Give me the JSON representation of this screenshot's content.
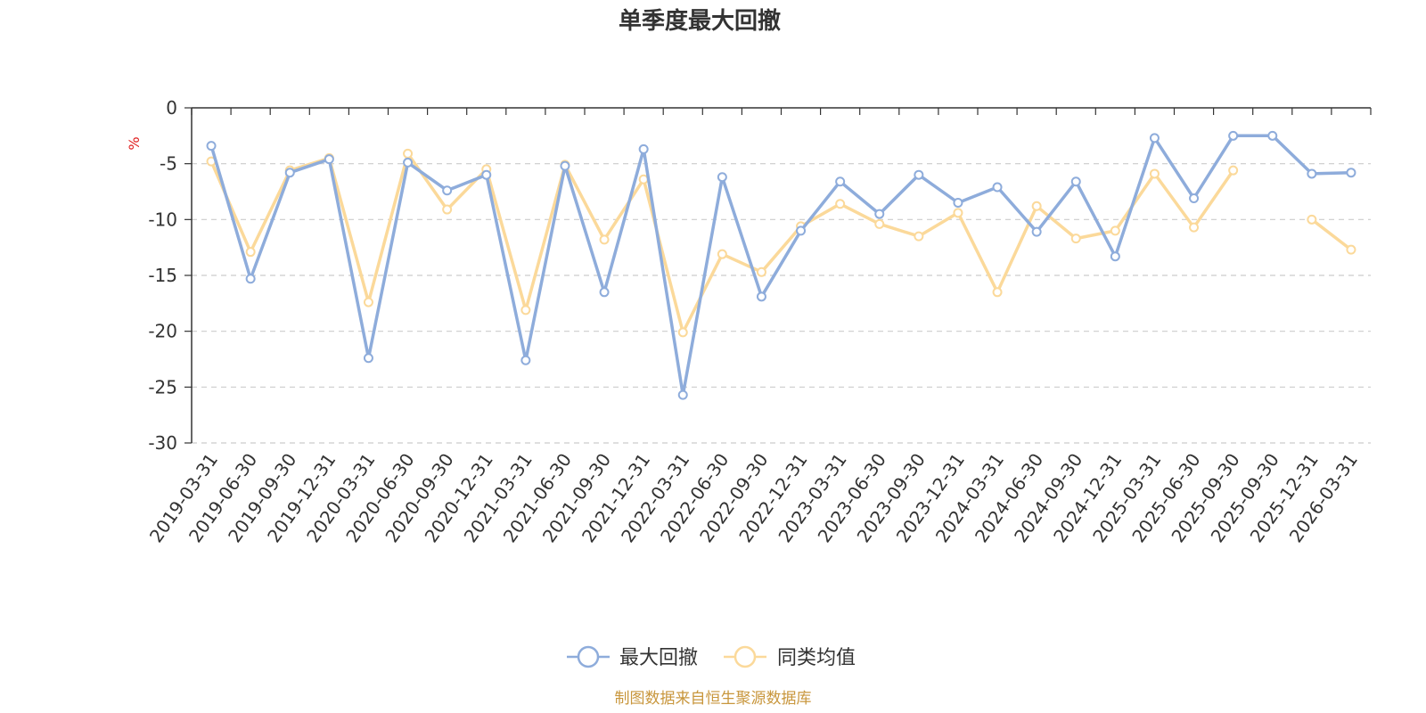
{
  "chart_data": {
    "type": "line",
    "title": "单季度最大回撤",
    "ylabel": "%",
    "ylim": [
      -30,
      0
    ],
    "yticks": [
      0,
      -5,
      -10,
      -15,
      -20,
      -25,
      -30
    ],
    "grid": true,
    "legend_position": "bottom-center",
    "categories": [
      "2019-03-31",
      "2019-06-30",
      "2019-09-30",
      "2019-12-31",
      "2020-03-31",
      "2020-06-30",
      "2020-09-30",
      "2020-12-31",
      "2021-03-31",
      "2021-06-30",
      "2021-09-30",
      "2021-12-31",
      "2022-03-31",
      "2022-06-30",
      "2022-09-30",
      "2022-12-31",
      "2023-03-31",
      "2023-06-30",
      "2023-09-30",
      "2023-12-31",
      "2024-03-31",
      "2024-06-30",
      "2024-09-30",
      "2024-12-31",
      "2025-03-31",
      "2025-06-30",
      "2025-09-30",
      "2025-09-30",
      "2025-12-31",
      "2026-03-31"
    ],
    "series": [
      {
        "name": "最大回撤",
        "color": "#8eacdb",
        "values": [
          -3.4,
          -15.3,
          -5.8,
          -4.6,
          -22.4,
          -4.9,
          -7.4,
          -6.0,
          -22.6,
          -5.2,
          -16.5,
          -3.7,
          -25.7,
          -6.2,
          -16.9,
          -11.0,
          -6.6,
          -9.5,
          -6.0,
          -8.5,
          -7.1,
          -11.1,
          -6.6,
          -13.3,
          -2.7,
          -8.1,
          -2.5,
          -2.5,
          -5.9,
          -5.8
        ]
      },
      {
        "name": "同类均值",
        "color": "#fbd99a",
        "values": [
          -4.8,
          -12.9,
          -5.6,
          -4.5,
          -17.4,
          -4.1,
          -9.1,
          -5.5,
          -18.1,
          -5.1,
          -11.8,
          -6.4,
          -20.1,
          -13.1,
          -14.7,
          -10.6,
          -8.6,
          -10.4,
          -11.5,
          -9.4,
          -16.5,
          -8.8,
          -11.7,
          -11.0,
          -5.9,
          -10.7,
          -5.6,
          null,
          -10.0,
          -12.7
        ]
      }
    ]
  },
  "footer": {
    "source": "制图数据来自恒生聚源数据库",
    "source_color": "#c8963c"
  },
  "unit_color": "#e02020"
}
